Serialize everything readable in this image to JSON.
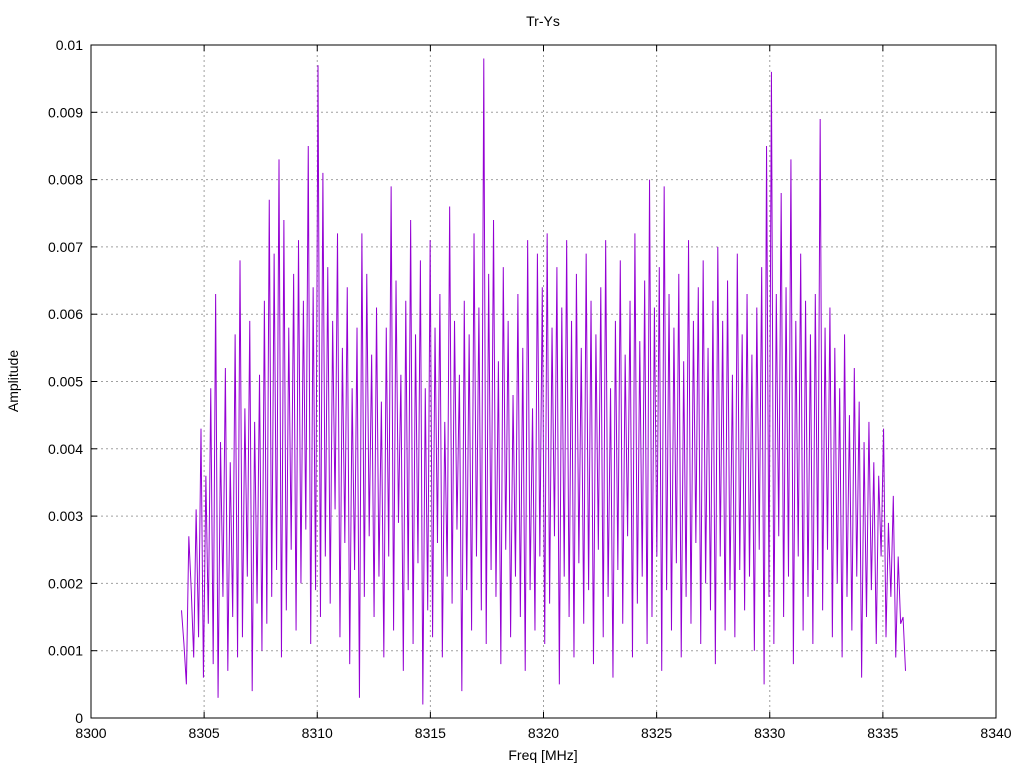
{
  "chart_data": {
    "type": "line",
    "title": "Tr-Ys",
    "xlabel": "Freq [MHz]",
    "ylabel": "Amplitude",
    "xlim": [
      8300,
      8340
    ],
    "ylim": [
      0,
      0.01
    ],
    "xticks": [
      "8300",
      "8305",
      "8310",
      "8315",
      "8320",
      "8325",
      "8330",
      "8335",
      "8340"
    ],
    "yticks": [
      "0",
      "0.001",
      "0.002",
      "0.003",
      "0.004",
      "0.005",
      "0.006",
      "0.007",
      "0.008",
      "0.009",
      "0.01"
    ],
    "grid": true,
    "legend": "none",
    "series": [
      {
        "color": "#9400d3",
        "x_start": 8304.0,
        "x_end": 8336.0,
        "values": [
          0.0016,
          0.0011,
          0.0005,
          0.0027,
          0.0019,
          0.0009,
          0.0031,
          0.0012,
          0.0043,
          0.0006,
          0.0036,
          0.0014,
          0.0049,
          0.0008,
          0.0063,
          0.0003,
          0.0041,
          0.0018,
          0.0052,
          0.0007,
          0.0038,
          0.0015,
          0.0057,
          0.0009,
          0.0068,
          0.0012,
          0.0046,
          0.0021,
          0.0059,
          0.0004,
          0.0044,
          0.0017,
          0.0051,
          0.001,
          0.0062,
          0.0014,
          0.0077,
          0.0018,
          0.0069,
          0.0022,
          0.0083,
          0.0009,
          0.0074,
          0.0016,
          0.0058,
          0.0025,
          0.0066,
          0.0013,
          0.0071,
          0.002,
          0.0062,
          0.0028,
          0.0085,
          0.0011,
          0.0064,
          0.0019,
          0.0097,
          0.0015,
          0.0081,
          0.0024,
          0.0067,
          0.0017,
          0.0059,
          0.0031,
          0.0072,
          0.0012,
          0.0055,
          0.0026,
          0.0064,
          0.0008,
          0.0049,
          0.0022,
          0.0058,
          0.0003,
          0.0072,
          0.0018,
          0.0066,
          0.0027,
          0.0054,
          0.0015,
          0.0061,
          0.0021,
          0.0047,
          0.0009,
          0.0058,
          0.0024,
          0.0079,
          0.0013,
          0.0065,
          0.0029,
          0.0051,
          0.0007,
          0.0062,
          0.0019,
          0.0074,
          0.0011,
          0.0057,
          0.0023,
          0.0068,
          0.0002,
          0.0049,
          0.0016,
          0.0071,
          0.0012,
          0.0058,
          0.0026,
          0.0063,
          0.0009,
          0.0044,
          0.0021,
          0.0076,
          0.0017,
          0.0059,
          0.0028,
          0.0051,
          0.0004,
          0.0062,
          0.0019,
          0.0057,
          0.0013,
          0.0072,
          0.0024,
          0.0061,
          0.0016,
          0.0098,
          0.0011,
          0.0066,
          0.0022,
          0.0074,
          0.0018,
          0.0053,
          0.0008,
          0.0067,
          0.0025,
          0.0059,
          0.0012,
          0.0048,
          0.0021,
          0.0063,
          0.0015,
          0.0055,
          0.0007,
          0.0071,
          0.0019,
          0.0046,
          0.0013,
          0.0069,
          0.0024,
          0.0064,
          0.0011,
          0.0072,
          0.0017,
          0.0058,
          0.0027,
          0.0067,
          0.0005,
          0.0061,
          0.0021,
          0.0071,
          0.0015,
          0.0059,
          0.0009,
          0.0066,
          0.0023,
          0.0055,
          0.0014,
          0.0069,
          0.0019,
          0.0062,
          0.0008,
          0.0057,
          0.0025,
          0.0064,
          0.0012,
          0.0071,
          0.0018,
          0.0049,
          0.0006,
          0.0059,
          0.0022,
          0.0068,
          0.0014,
          0.0054,
          0.0027,
          0.0062,
          0.0009,
          0.0072,
          0.0017,
          0.0056,
          0.0021,
          0.0065,
          0.0011,
          0.008,
          0.0015,
          0.0061,
          0.0024,
          0.0067,
          0.0007,
          0.0079,
          0.0019,
          0.0063,
          0.0013,
          0.0058,
          0.0023,
          0.0066,
          0.0009,
          0.0053,
          0.0018,
          0.0071,
          0.0014,
          0.0059,
          0.0026,
          0.0064,
          0.0011,
          0.0068,
          0.002,
          0.0055,
          0.0016,
          0.0062,
          0.0008,
          0.007,
          0.0024,
          0.0059,
          0.0013,
          0.0065,
          0.0019,
          0.0051,
          0.0012,
          0.0069,
          0.0022,
          0.0057,
          0.0016,
          0.0063,
          0.0021,
          0.0054,
          0.001,
          0.0061,
          0.0025,
          0.0067,
          0.0005,
          0.0085,
          0.0018,
          0.0096,
          0.0011,
          0.0063,
          0.0027,
          0.0078,
          0.0015,
          0.0064,
          0.0021,
          0.0083,
          0.0008,
          0.0059,
          0.0024,
          0.0069,
          0.0013,
          0.0062,
          0.0018,
          0.0057,
          0.0011,
          0.0063,
          0.0022,
          0.0089,
          0.0016,
          0.0058,
          0.0025,
          0.0061,
          0.0012,
          0.0055,
          0.002,
          0.0049,
          0.0009,
          0.0057,
          0.0018,
          0.0045,
          0.0013,
          0.0052,
          0.0021,
          0.0047,
          0.0006,
          0.0041,
          0.0015,
          0.0044,
          0.0019,
          0.0038,
          0.0011,
          0.0036,
          0.0024,
          0.0043,
          0.0012,
          0.0029,
          0.0018,
          0.0033,
          0.0009,
          0.0024,
          0.0014,
          0.0015,
          0.0007
        ]
      }
    ]
  }
}
